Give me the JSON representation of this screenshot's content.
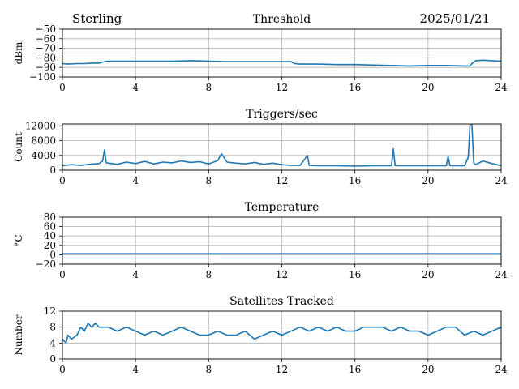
{
  "header": {
    "station": "Sterling",
    "date": "2025/01/21"
  },
  "colors": {
    "series": "#1f77b4",
    "grid": "#b0b0b0",
    "axis": "#000000"
  },
  "chart_data": [
    {
      "type": "line",
      "title": "Threshold",
      "ylabel": "dBm",
      "xlim": [
        0,
        24
      ],
      "ylim": [
        -100,
        -50
      ],
      "xticks": [
        0,
        4,
        8,
        12,
        16,
        20,
        24
      ],
      "yticks": [
        -50,
        -60,
        -70,
        -80,
        -90,
        -100
      ],
      "ytick_labels": [
        "−50",
        "−60",
        "−70",
        "−80",
        "−90",
        "−100"
      ],
      "grid": true,
      "x": [
        0,
        0.3,
        0.8,
        1.2,
        1.6,
        2.0,
        2.3,
        2.5,
        3,
        4,
        5,
        6,
        7,
        8,
        9,
        10,
        11,
        12,
        12.5,
        12.7,
        13,
        14,
        15,
        16,
        17,
        18,
        19,
        20,
        21,
        22,
        22.3,
        22.4,
        22.6,
        23,
        23.5,
        24
      ],
      "values": [
        -86,
        -86.5,
        -86,
        -86,
        -85.5,
        -85.5,
        -84,
        -83.5,
        -83.5,
        -83.5,
        -83.5,
        -83.5,
        -83,
        -83.5,
        -84,
        -84,
        -84,
        -84,
        -84,
        -86,
        -86.5,
        -86.5,
        -87,
        -87,
        -87.5,
        -88,
        -88.5,
        -88,
        -88,
        -88.5,
        -88.5,
        -86,
        -83,
        -82.5,
        -83,
        -83.5
      ]
    },
    {
      "type": "line",
      "title": "Triggers/sec",
      "ylabel": "Count",
      "xlim": [
        0,
        24
      ],
      "ylim": [
        0,
        12500
      ],
      "xticks": [
        0,
        4,
        8,
        12,
        16,
        20,
        24
      ],
      "yticks": [
        0,
        4000,
        8000,
        12000
      ],
      "ytick_labels": [
        "0",
        "4000",
        "8000",
        "12000"
      ],
      "grid": true,
      "x": [
        0,
        0.5,
        1,
        1.5,
        2,
        2.2,
        2.3,
        2.4,
        3,
        3.5,
        4,
        4.5,
        5,
        5.5,
        6,
        6.5,
        7,
        7.5,
        8,
        8.5,
        8.7,
        9,
        9.5,
        10,
        10.5,
        11,
        11.5,
        12,
        12.5,
        13,
        13.4,
        13.5,
        14,
        15,
        16,
        17,
        18,
        18.1,
        18.2,
        19,
        20,
        21,
        21.1,
        21.2,
        22,
        22.2,
        22.3,
        22.4,
        22.5,
        22.6,
        23,
        23.5,
        24
      ],
      "values": [
        1200,
        1500,
        1300,
        1600,
        1800,
        2500,
        5500,
        2000,
        1600,
        2200,
        1800,
        2400,
        1700,
        2200,
        2000,
        2500,
        2100,
        2300,
        1700,
        2600,
        4500,
        2200,
        1900,
        1700,
        2100,
        1600,
        1900,
        1500,
        1300,
        1300,
        4000,
        1300,
        1200,
        1200,
        1100,
        1200,
        1200,
        5800,
        1200,
        1200,
        1200,
        1200,
        3800,
        1200,
        1200,
        3500,
        12500,
        12500,
        2000,
        1500,
        2500,
        1800,
        1200
      ]
    },
    {
      "type": "line",
      "title": "Temperature",
      "ylabel": "°C",
      "xlim": [
        0,
        24
      ],
      "ylim": [
        -20,
        80
      ],
      "xticks": [
        0,
        4,
        8,
        12,
        16,
        20,
        24
      ],
      "yticks": [
        80,
        60,
        40,
        20,
        0,
        -20
      ],
      "ytick_labels": [
        "80",
        "60",
        "40",
        "20",
        "0",
        "−20"
      ],
      "grid": true,
      "x": [
        0,
        24
      ],
      "values": [
        2,
        2
      ]
    },
    {
      "type": "line",
      "title": "Satellites Tracked",
      "ylabel": "Number",
      "xlim": [
        0,
        24
      ],
      "ylim": [
        0,
        12
      ],
      "xticks": [
        0,
        4,
        8,
        12,
        16,
        20,
        24
      ],
      "yticks": [
        0,
        4,
        8,
        12
      ],
      "ytick_labels": [
        "0",
        "4",
        "8",
        "12"
      ],
      "grid": true,
      "x": [
        0,
        0.2,
        0.3,
        0.5,
        0.8,
        1.0,
        1.2,
        1.4,
        1.6,
        1.8,
        2.0,
        2.5,
        3.0,
        3.5,
        4.0,
        4.5,
        5.0,
        5.5,
        6.0,
        6.5,
        7.0,
        7.5,
        8.0,
        8.5,
        9.0,
        9.5,
        10.0,
        10.5,
        11.0,
        11.5,
        12.0,
        12.5,
        13.0,
        13.5,
        14.0,
        14.5,
        15.0,
        15.5,
        16.0,
        16.5,
        17.0,
        17.5,
        18.0,
        18.5,
        19.0,
        19.5,
        20.0,
        20.5,
        21.0,
        21.5,
        22.0,
        22.5,
        23.0,
        23.5,
        24.0
      ],
      "values": [
        5,
        4,
        6,
        5,
        6,
        8,
        7,
        9,
        8,
        9,
        8,
        8,
        7,
        8,
        7,
        6,
        7,
        6,
        7,
        8,
        7,
        6,
        6,
        7,
        6,
        6,
        7,
        5,
        6,
        7,
        6,
        7,
        8,
        7,
        8,
        7,
        8,
        7,
        7,
        8,
        8,
        8,
        7,
        8,
        7,
        7,
        6,
        7,
        8,
        8,
        6,
        7,
        6,
        7,
        8
      ]
    }
  ]
}
